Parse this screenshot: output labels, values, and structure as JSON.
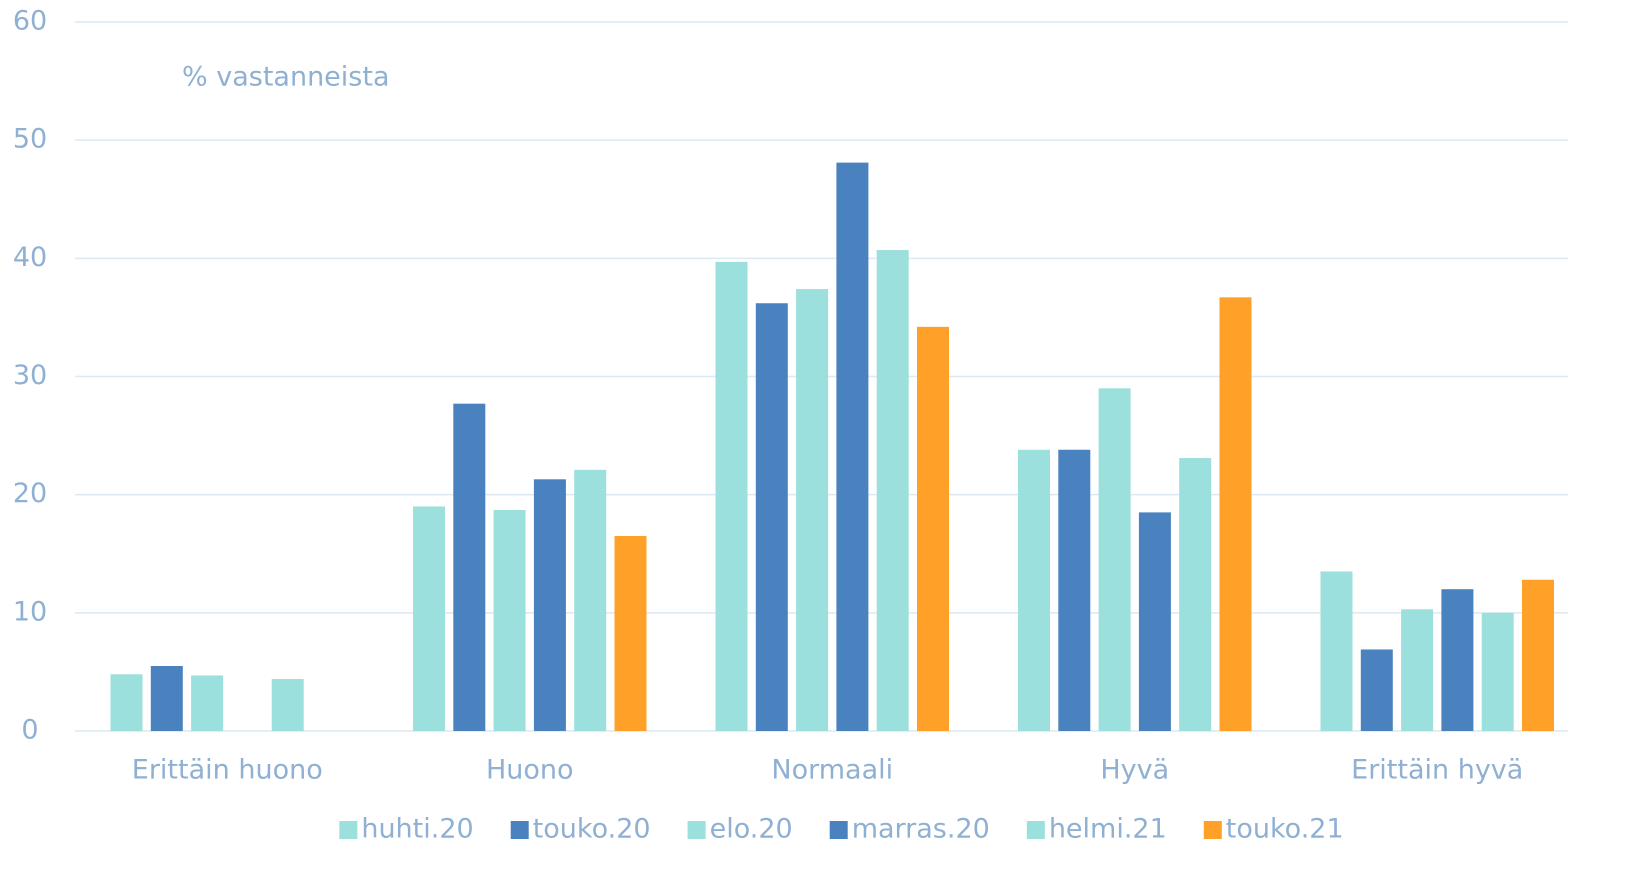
{
  "chart_data": {
    "type": "bar",
    "annotation": "% vastanneista",
    "categories": [
      "Erittäin huono",
      "Huono",
      "Normaali",
      "Hyvä",
      "Erittäin hyvä"
    ],
    "series": [
      {
        "name": "huhti.20",
        "color": "#9be0dc",
        "values": [
          4.8,
          19.0,
          39.7,
          23.8,
          13.5
        ]
      },
      {
        "name": "touko.20",
        "color": "#4a82bf",
        "values": [
          5.5,
          27.7,
          36.2,
          23.8,
          6.9
        ]
      },
      {
        "name": "elo.20",
        "color": "#9be0dc",
        "values": [
          4.7,
          18.7,
          37.4,
          29.0,
          10.3
        ]
      },
      {
        "name": "marras.20",
        "color": "#4a82bf",
        "values": [
          null,
          21.3,
          48.1,
          18.5,
          12.0
        ]
      },
      {
        "name": "helmi.21",
        "color": "#9be0dc",
        "values": [
          4.4,
          22.1,
          40.7,
          23.1,
          10.0
        ]
      },
      {
        "name": "touko.21",
        "color": "#ffa028",
        "values": [
          null,
          16.5,
          34.2,
          36.7,
          12.8
        ]
      }
    ],
    "ylim": [
      0,
      60
    ],
    "yticks": [
      0,
      10,
      20,
      30,
      40,
      50,
      60
    ],
    "grid": true,
    "legend": "bottom"
  }
}
